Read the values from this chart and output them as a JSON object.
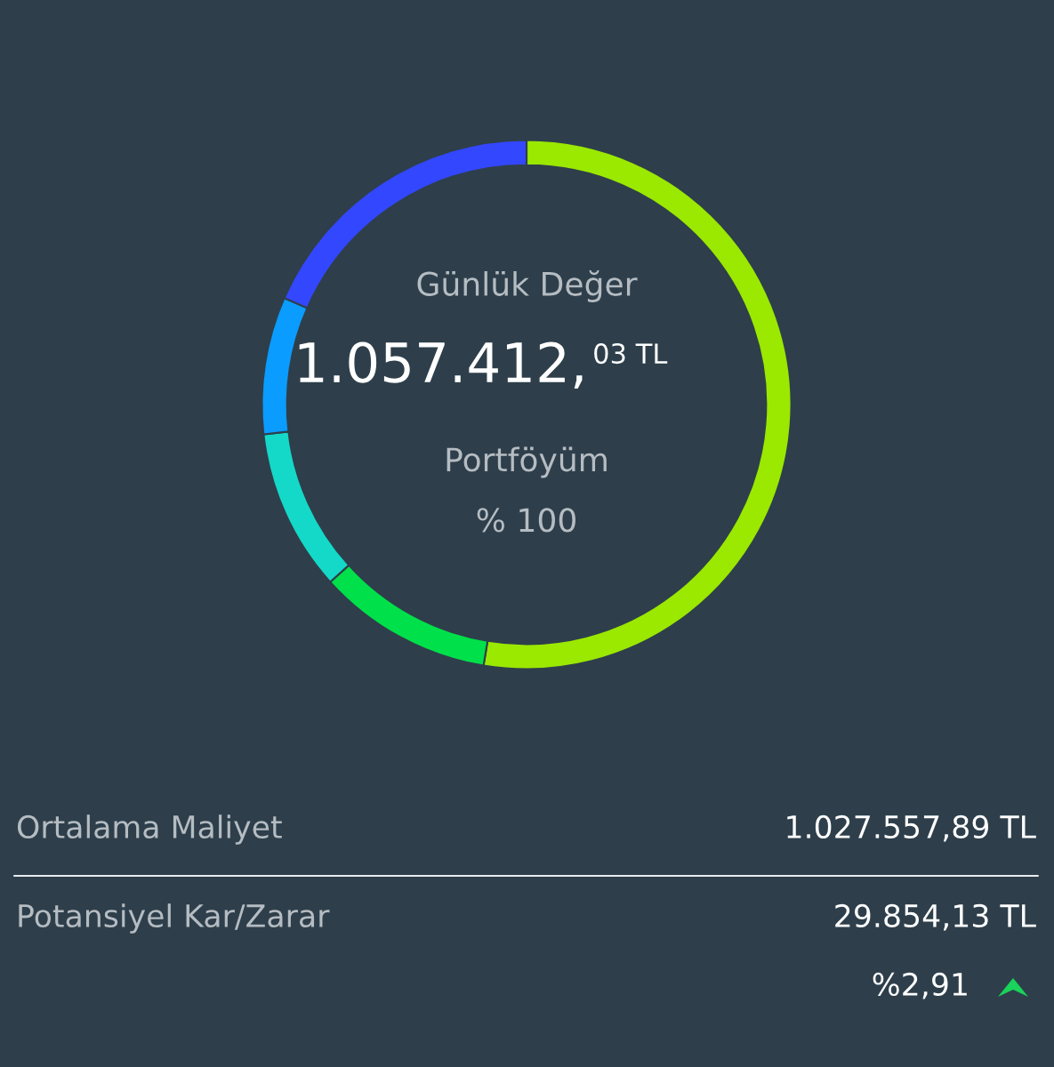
{
  "chart_data": {
    "type": "donut",
    "categories": [
      null,
      null,
      null,
      null,
      null
    ],
    "values": [
      52.6,
      10.7,
      9.9,
      8.4,
      18.4
    ],
    "colors": [
      "#9be800",
      "#00e04a",
      "#14d9c8",
      "#0a9cff",
      "#3347ff"
    ],
    "annotations": [
      "Günlük Değer",
      "1.057.412,",
      "03 TL",
      "Portföyüm",
      "% 100",
      "Ortalama Maliyet",
      "1.027.557,89 TL",
      "Potansiyel Kar/Zarar",
      "29.854,13 TL",
      "%2,91"
    ]
  }
}
